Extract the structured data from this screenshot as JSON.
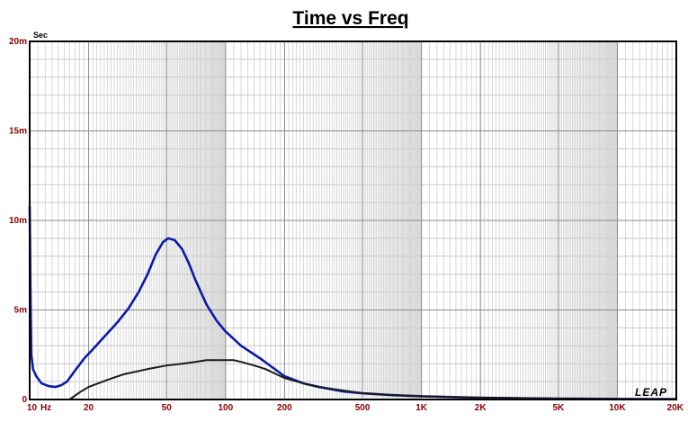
{
  "chart_data": {
    "type": "line",
    "title": "Time vs Freq",
    "ylabel": "Sec",
    "xlabel": "",
    "x_scale": "log",
    "xlim": [
      10,
      20000
    ],
    "ylim": [
      0,
      0.02
    ],
    "grid": true,
    "y_ticks": [
      {
        "value": 0,
        "label": "0"
      },
      {
        "value": 0.005,
        "label": "5m"
      },
      {
        "value": 0.01,
        "label": "10m"
      },
      {
        "value": 0.015,
        "label": "15m"
      },
      {
        "value": 0.02,
        "label": "20m"
      }
    ],
    "x_ticks": [
      {
        "value": 10,
        "label": "10"
      },
      {
        "value": 20,
        "label": "20"
      },
      {
        "value": 50,
        "label": "50"
      },
      {
        "value": 100,
        "label": "100"
      },
      {
        "value": 200,
        "label": "200"
      },
      {
        "value": 500,
        "label": "500"
      },
      {
        "value": 1000,
        "label": "1K"
      },
      {
        "value": 2000,
        "label": "2K"
      },
      {
        "value": 5000,
        "label": "5K"
      },
      {
        "value": 10000,
        "label": "10K"
      },
      {
        "value": 20000,
        "label": "20K"
      }
    ],
    "x_unit_label": "Hz",
    "series": [
      {
        "color": "#0a1aa8",
        "points": [
          [
            10,
            0.0108
          ],
          [
            10.1,
            0.006
          ],
          [
            10.2,
            0.0025
          ],
          [
            10.4,
            0.0017
          ],
          [
            10.8,
            0.0013
          ],
          [
            11.5,
            0.0009
          ],
          [
            12.5,
            0.00075
          ],
          [
            13.5,
            0.0007
          ],
          [
            14.5,
            0.0008
          ],
          [
            15.5,
            0.001
          ],
          [
            17,
            0.0016
          ],
          [
            19,
            0.0023
          ],
          [
            21,
            0.0028
          ],
          [
            24,
            0.0035
          ],
          [
            28,
            0.0043
          ],
          [
            32,
            0.0051
          ],
          [
            36,
            0.006
          ],
          [
            40,
            0.007
          ],
          [
            44,
            0.0081
          ],
          [
            48,
            0.0088
          ],
          [
            51,
            0.009
          ],
          [
            55,
            0.0089
          ],
          [
            60,
            0.0084
          ],
          [
            65,
            0.0076
          ],
          [
            70,
            0.0067
          ],
          [
            80,
            0.0053
          ],
          [
            90,
            0.0044
          ],
          [
            100,
            0.0038
          ],
          [
            120,
            0.003
          ],
          [
            150,
            0.0023
          ],
          [
            200,
            0.0013
          ],
          [
            250,
            0.0009
          ],
          [
            300,
            0.0007
          ],
          [
            400,
            0.00045
          ],
          [
            500,
            0.00035
          ],
          [
            700,
            0.00025
          ],
          [
            1000,
            0.00018
          ],
          [
            1500,
            0.00013
          ],
          [
            2000,
            0.0001
          ],
          [
            3000,
            7e-05
          ],
          [
            5000,
            5e-05
          ],
          [
            10000,
            3e-05
          ],
          [
            20000,
            2e-05
          ]
        ]
      },
      {
        "color": "#1a1a1a",
        "points": [
          [
            16,
            0.0
          ],
          [
            18,
            0.0004
          ],
          [
            20,
            0.0007
          ],
          [
            25,
            0.0011
          ],
          [
            30,
            0.0014
          ],
          [
            40,
            0.0017
          ],
          [
            50,
            0.0019
          ],
          [
            60,
            0.002
          ],
          [
            70,
            0.0021
          ],
          [
            80,
            0.0022
          ],
          [
            90,
            0.0022
          ],
          [
            100,
            0.0022
          ],
          [
            110,
            0.0022
          ],
          [
            120,
            0.0021
          ],
          [
            140,
            0.0019
          ],
          [
            160,
            0.0017
          ],
          [
            200,
            0.0012
          ],
          [
            250,
            0.0009
          ],
          [
            300,
            0.0007
          ],
          [
            400,
            0.0005
          ],
          [
            500,
            0.00035
          ],
          [
            700,
            0.00025
          ],
          [
            1000,
            0.00018
          ],
          [
            2000,
            0.0001
          ],
          [
            5000,
            5e-05
          ],
          [
            10000,
            3e-05
          ],
          [
            20000,
            2e-05
          ]
        ]
      }
    ],
    "logo_text": "LEAP"
  }
}
